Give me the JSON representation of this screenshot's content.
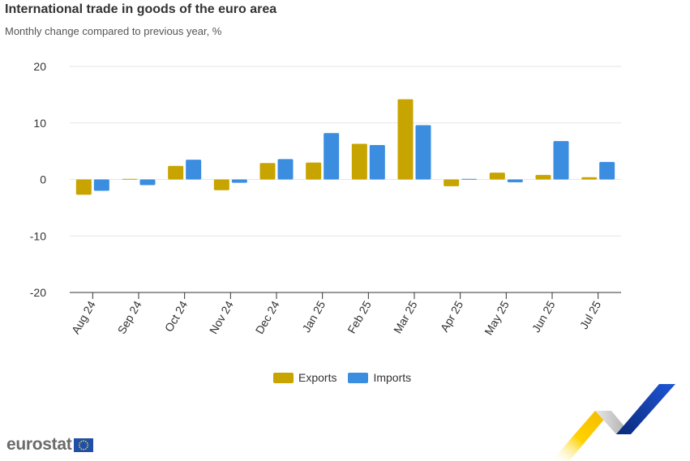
{
  "title": "International trade in goods of the euro area",
  "subtitle": "Monthly change compared to previous year, %",
  "logo": {
    "text": "eurostat"
  },
  "colors": {
    "exports": "#c8a400",
    "imports": "#3b8de0",
    "grid": "#e6e6e6",
    "axis": "#333333"
  },
  "chart_data": {
    "type": "bar",
    "categories": [
      "Aug 24",
      "Sep 24",
      "Oct 24",
      "Nov 24",
      "Dec 24",
      "Jan 25",
      "Feb 25",
      "Mar 25",
      "Apr 25",
      "May 25",
      "Jun 25",
      "Jul 25"
    ],
    "series": [
      {
        "name": "Exports",
        "values": [
          -2.7,
          0.1,
          2.4,
          -1.9,
          2.9,
          3.0,
          6.3,
          14.2,
          -1.2,
          1.2,
          0.8,
          0.4
        ]
      },
      {
        "name": "Imports",
        "values": [
          -2.0,
          -1.0,
          3.5,
          -0.6,
          3.6,
          8.2,
          6.1,
          9.6,
          0.1,
          -0.5,
          6.8,
          3.1
        ]
      }
    ],
    "yticks": [
      20,
      10,
      0,
      -10,
      -20
    ],
    "ylim": [
      -20,
      20
    ],
    "grid": true,
    "legend": "bottom-center"
  }
}
